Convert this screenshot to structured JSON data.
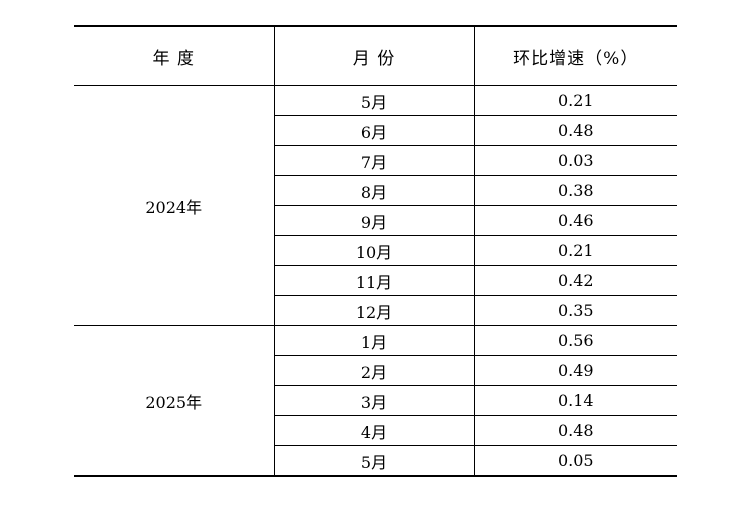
{
  "header": {
    "year": "年 度",
    "month": "月 份",
    "growth": "环比增速（%）"
  },
  "groups": [
    {
      "year": "2024年",
      "rows": [
        {
          "month": "5月",
          "value": "0.21"
        },
        {
          "month": "6月",
          "value": "0.48"
        },
        {
          "month": "7月",
          "value": "0.03"
        },
        {
          "month": "8月",
          "value": "0.38"
        },
        {
          "month": "9月",
          "value": "0.46"
        },
        {
          "month": "10月",
          "value": "0.21"
        },
        {
          "month": "11月",
          "value": "0.42"
        },
        {
          "month": "12月",
          "value": "0.35"
        }
      ]
    },
    {
      "year": "2025年",
      "rows": [
        {
          "month": "1月",
          "value": "0.56"
        },
        {
          "month": "2月",
          "value": "0.49"
        },
        {
          "month": "3月",
          "value": "0.14"
        },
        {
          "month": "4月",
          "value": "0.48"
        },
        {
          "month": "5月",
          "value": "0.05"
        }
      ]
    }
  ]
}
